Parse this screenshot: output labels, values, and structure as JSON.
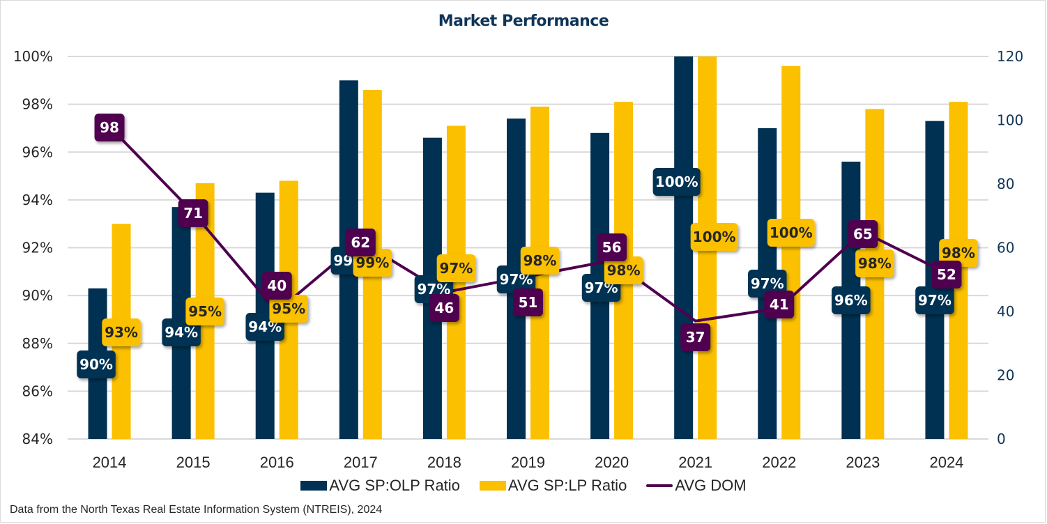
{
  "chart_data": {
    "type": "bar",
    "title": "Market Performance",
    "categories": [
      "2014",
      "2015",
      "2016",
      "2017",
      "2018",
      "2019",
      "2020",
      "2021",
      "2022",
      "2023",
      "2024"
    ],
    "series": [
      {
        "name": "AVG SP:OLP Ratio",
        "type": "bar",
        "axis": "left",
        "color": "#003152",
        "values": [
          90.3,
          93.7,
          94.3,
          99.0,
          96.6,
          97.4,
          96.8,
          100.0,
          97.0,
          95.6,
          97.3
        ],
        "labels": [
          "90%",
          "94%",
          "94%",
          "99%",
          "97%",
          "97%",
          "97%",
          "100%",
          "97%",
          "96%",
          "97%"
        ]
      },
      {
        "name": "AVG SP:LP Ratio",
        "type": "bar",
        "axis": "left",
        "color": "#fbc000",
        "values": [
          93.0,
          94.7,
          94.8,
          98.6,
          97.1,
          97.9,
          98.1,
          100.0,
          99.6,
          97.8,
          98.1
        ],
        "labels": [
          "93%",
          "95%",
          "95%",
          "99%",
          "97%",
          "98%",
          "98%",
          "100%",
          "100%",
          "98%",
          "98%"
        ]
      },
      {
        "name": "AVG DOM",
        "type": "line",
        "axis": "right",
        "color": "#4f0050",
        "values": [
          98,
          71,
          40,
          62,
          46,
          51,
          56,
          37,
          41,
          65,
          52
        ],
        "labels": [
          "98",
          "71",
          "40",
          "62",
          "46",
          "51",
          "56",
          "37",
          "41",
          "65",
          "52"
        ]
      }
    ],
    "left_axis": {
      "ylim": [
        84,
        100
      ],
      "ticks": [
        "84%",
        "86%",
        "88%",
        "90%",
        "92%",
        "94%",
        "96%",
        "98%",
        "100%"
      ]
    },
    "right_axis": {
      "ylim": [
        0,
        120
      ],
      "ticks": [
        "0",
        "20",
        "40",
        "60",
        "80",
        "100",
        "120"
      ]
    },
    "xlabel": "",
    "ylabel": "",
    "grid": true,
    "legend": "bottom",
    "legend_entries": [
      "AVG SP:OLP Ratio",
      "AVG SP:LP Ratio",
      "AVG DOM"
    ],
    "footnote": "Data from the North Texas Real Estate Information System (NTREIS), 2024"
  }
}
